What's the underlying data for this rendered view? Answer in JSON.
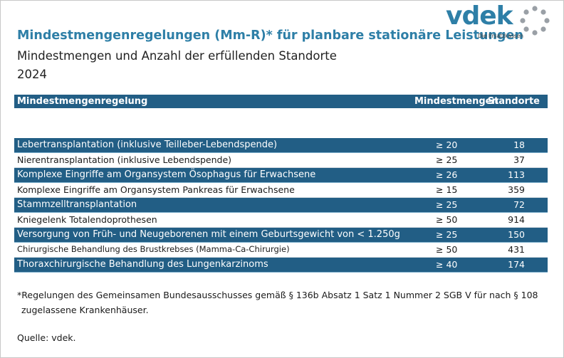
{
  "header": {
    "title": "Mindestmengenregelungen (Mm-R)* für planbare stationäre Leistungen",
    "subtitle": "Mindestmengen und Anzahl der erfüllenden Standorte",
    "year": "2024"
  },
  "logo": {
    "text": "vdek",
    "tagline": "Die Ersatzkassen",
    "color": "#2e7fa7"
  },
  "table": {
    "columns": [
      "Mindestmengenregelung",
      "Mindestmengen",
      "Standorte"
    ],
    "rows": [
      {
        "name": "Lebertransplantation (inklusive Teilleber-Lebendspende)",
        "min": "≥ 20",
        "sites": "18"
      },
      {
        "name": "Nierentransplantation (inklusive Lebendspende)",
        "min": "≥ 25",
        "sites": "37"
      },
      {
        "name": "Komplexe Eingriffe am Organsystem Ösophagus für Erwachsene",
        "min": "≥ 26",
        "sites": "113"
      },
      {
        "name": "Komplexe Eingriffe am Organsystem Pankreas für Erwachsene",
        "min": "≥ 15",
        "sites": "359"
      },
      {
        "name": "Stammzelltransplantation",
        "min": "≥ 25",
        "sites": "72"
      },
      {
        "name": "Kniegelenk Totalendoprothesen",
        "min": "≥ 50",
        "sites": "914"
      },
      {
        "name": "Versorgung von Früh- und Neugeborenen mit einem Geburtsgewicht von < 1.250g",
        "min": "≥ 25",
        "sites": "150"
      },
      {
        "name": "Chirurgische Behandlung des Brustkrebses (Mamma-Ca-Chirurgie)",
        "min": "≥ 50",
        "sites": "431"
      },
      {
        "name": "Thoraxchirurgische Behandlung des Lungenkarzinoms",
        "min": "≥ 40",
        "sites": "174"
      }
    ]
  },
  "footnote": {
    "line1": "*Regelungen des Gemeinsamen Bundesausschusses gemäß § 136b Absatz 1 Satz 1 Nummer 2 SGB V für nach § 108",
    "line2": "zugelassene Krankenhäuser."
  },
  "source": "Quelle: vdek.",
  "colors": {
    "header_bg": "#225e85",
    "title": "#2e7fa7",
    "logo_dots": "#9aa0a6"
  }
}
